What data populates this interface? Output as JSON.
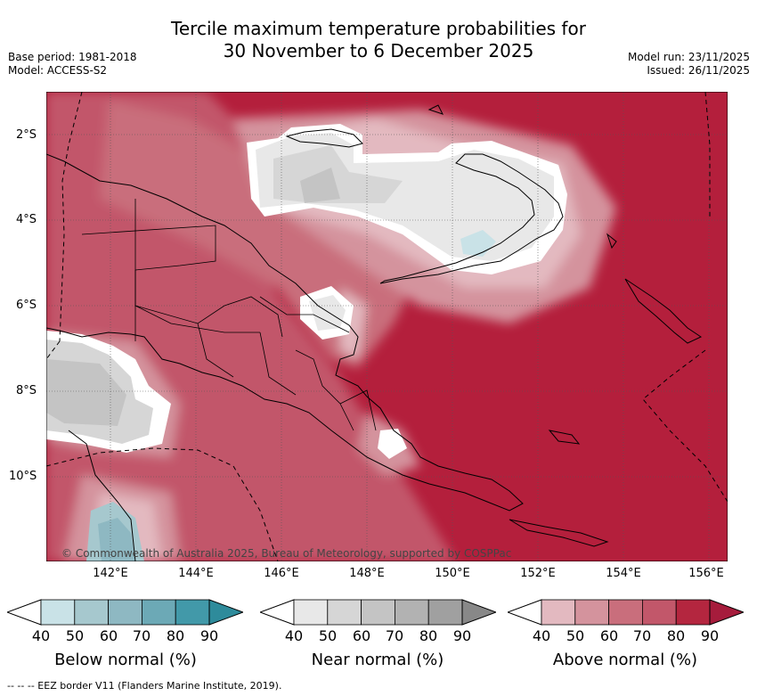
{
  "title_line1": "Tercile maximum temperature probabilities for",
  "title_line2": "30 November to 6 December 2025",
  "base_period": "Base period: 1981-2018",
  "model": "Model: ACCESS-S2",
  "model_run": "Model run: 23/11/2025",
  "issued": "Issued: 26/11/2025",
  "copyright": "© Commonwealth of Australia 2025, Bureau of Meteorology, supported by COSPPac",
  "footnote": "--  --  -- EEZ border V11 (Flanders Marine Institute, 2019).",
  "lat_ticks": [
    "2°S",
    "4°S",
    "6°S",
    "8°S",
    "10°S"
  ],
  "lon_ticks": [
    "142°E",
    "144°E",
    "146°E",
    "148°E",
    "150°E",
    "152°E",
    "154°E",
    "156°E"
  ],
  "colorbars": [
    {
      "label": "Below normal (%)",
      "ticks": [
        "40",
        "50",
        "60",
        "70",
        "80",
        "90"
      ],
      "colors": [
        "#c9e2e7",
        "#a6c8ce",
        "#8eb8c2",
        "#6ca9b6",
        "#4299a9",
        "#2e8b9b"
      ]
    },
    {
      "label": "Near normal (%)",
      "ticks": [
        "40",
        "50",
        "60",
        "70",
        "80",
        "90"
      ],
      "colors": [
        "#e8e8e8",
        "#d6d6d6",
        "#c4c4c4",
        "#b2b2b2",
        "#a0a0a0",
        "#888888"
      ]
    },
    {
      "label": "Above normal (%)",
      "ticks": [
        "40",
        "50",
        "60",
        "70",
        "80",
        "90"
      ],
      "colors": [
        "#e3b9c0",
        "#d4939d",
        "#c96e7c",
        "#c2576a",
        "#b4263f",
        "#a61c3c"
      ]
    }
  ],
  "legend": {
    "bg_color": "#ffffff",
    "dominant_above": "#b41f3c"
  }
}
